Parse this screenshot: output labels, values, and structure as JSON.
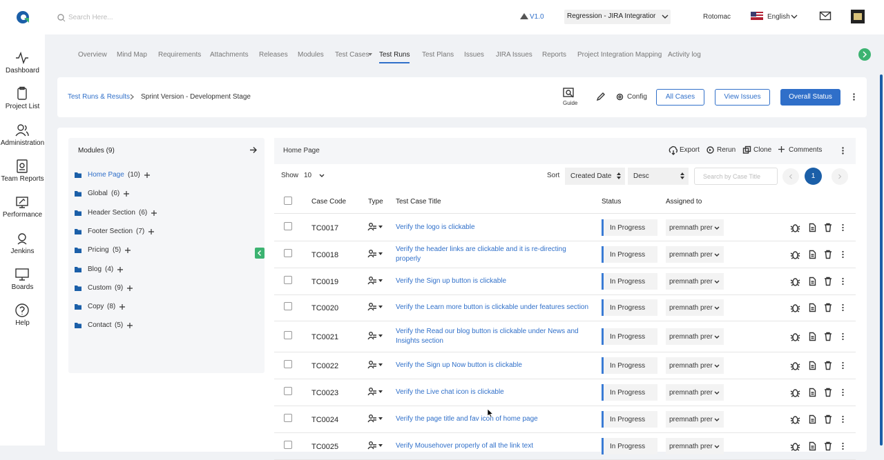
{
  "topbar": {
    "search_placeholder": "Search Here...",
    "version": "V1.0",
    "project": "Regression - JIRA Integratior",
    "user": "Rotomac",
    "language": "English"
  },
  "sidebar": [
    "Dashboard",
    "Project List",
    "Administration",
    "Team Reports",
    "Performance",
    "Jenkins",
    "Boards",
    "Help"
  ],
  "tabs": [
    {
      "label": "Overview"
    },
    {
      "label": "Mind Map"
    },
    {
      "label": "Requirements"
    },
    {
      "label": "Attachments"
    },
    {
      "label": "Releases"
    },
    {
      "label": "Modules"
    },
    {
      "label": "Test Cases"
    },
    {
      "label": "Test Runs",
      "active": true
    },
    {
      "label": "Test Plans"
    },
    {
      "label": "Issues"
    },
    {
      "label": "JIRA Issues"
    },
    {
      "label": "Reports"
    },
    {
      "label": "Project Integration Mapping"
    },
    {
      "label": "Activity log"
    }
  ],
  "breadcrumb": [
    "Test Runs & Results",
    "Sprint Version - Development Stage"
  ],
  "actions": {
    "guide": "Guide",
    "config": "Config",
    "buttons": [
      "All Cases",
      "View Issues",
      "Overall Status"
    ]
  },
  "modules": {
    "title": "Modules (9)",
    "items": [
      {
        "name": "Home Page",
        "count": "(10)",
        "active": true
      },
      {
        "name": "Global",
        "count": "(6)"
      },
      {
        "name": "Header Section",
        "count": "(6)"
      },
      {
        "name": "Footer Section",
        "count": "(7)"
      },
      {
        "name": "Pricing",
        "count": "(5)"
      },
      {
        "name": "Blog",
        "count": "(4)"
      },
      {
        "name": "Custom",
        "count": "(9)"
      },
      {
        "name": "Copy",
        "count": "(8)"
      },
      {
        "name": "Contact",
        "count": "(5)"
      }
    ]
  },
  "panel": {
    "title": "Home Page",
    "tools": [
      "Export",
      "Rerun",
      "Clone",
      "Comments"
    ],
    "show_label": "Show",
    "page_size": "10",
    "sort_label": "Sort",
    "sort_field": "Created Date",
    "sort_order": "Desc",
    "search_placeholder": "Search by Case Title",
    "page": "1"
  },
  "table": {
    "columns": [
      "Case Code",
      "Type",
      "Test Case Title",
      "Status",
      "Assigned to"
    ],
    "rows": [
      [
        "TC0017",
        "Verify the logo is clickable",
        "In Progress",
        "premnath prer"
      ],
      [
        "TC0018",
        "Verify the header links are clickable and it is re-directing properly",
        "In Progress",
        "premnath prer"
      ],
      [
        "TC0019",
        "Verify the Sign up button is clickable",
        "In Progress",
        "premnath prer"
      ],
      [
        "TC0020",
        "Verify the Learn more button is clickable under features section",
        "In Progress",
        "premnath prer"
      ],
      [
        "TC0021",
        "Verify the Read our blog button is clickable under News and Insights section",
        "In Progress",
        "premnath prer"
      ],
      [
        "TC0022",
        "Verify the Sign up Now button is clickable",
        "In Progress",
        "premnath prer"
      ],
      [
        "TC0023",
        "Verify the Live chat icon is clickable",
        "In Progress",
        "premnath prer"
      ],
      [
        "TC0024",
        "Verify the page title and fav icon of home page",
        "In Progress",
        "premnath prer"
      ],
      [
        "TC0025",
        "Verify Mousehover properly of all the link text",
        "In Progress",
        "premnath prer"
      ]
    ]
  }
}
